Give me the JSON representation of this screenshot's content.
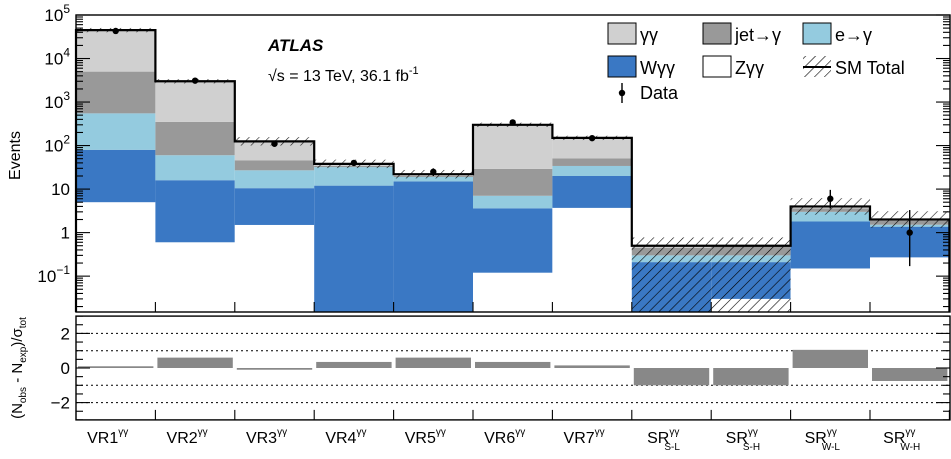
{
  "chart_data": [
    {
      "type": "bar",
      "stacked": true,
      "ylabel": "Events",
      "yscale": "log",
      "ylim": [
        0.015,
        100000
      ],
      "y_tick_labels": [
        {
          "value": 100000,
          "base": "10",
          "exp": "5"
        },
        {
          "value": 10000,
          "base": "10",
          "exp": "4"
        },
        {
          "value": 1000,
          "base": "10",
          "exp": "3"
        },
        {
          "value": 100,
          "base": "10",
          "exp": "2"
        },
        {
          "value": 10,
          "base": "10",
          "exp": ""
        },
        {
          "value": 1,
          "base": "1",
          "exp": ""
        },
        {
          "value": 0.1,
          "base": "10",
          "exp": "−1"
        }
      ],
      "categories": [
        {
          "main": "VR1",
          "sup": "γγ",
          "sub": ""
        },
        {
          "main": "VR2",
          "sup": "γγ",
          "sub": ""
        },
        {
          "main": "VR3",
          "sup": "γγ",
          "sub": ""
        },
        {
          "main": "VR4",
          "sup": "γγ",
          "sub": ""
        },
        {
          "main": "VR5",
          "sup": "γγ",
          "sub": ""
        },
        {
          "main": "VR6",
          "sup": "γγ",
          "sub": ""
        },
        {
          "main": "VR7",
          "sup": "γγ",
          "sub": ""
        },
        {
          "main": "SR",
          "sup": "γγ",
          "sub": "S-L"
        },
        {
          "main": "SR",
          "sup": "γγ",
          "sub": "S-H"
        },
        {
          "main": "SR",
          "sup": "γγ",
          "sub": "W-L"
        },
        {
          "main": "SR",
          "sup": "γγ",
          "sub": "W-H"
        }
      ],
      "series": [
        {
          "name": "Zγγ",
          "color": "#ffffff",
          "values": [
            5,
            0.6,
            1.5,
            0.01,
            0.01,
            0.12,
            3.7,
            0.01,
            0.03,
            0.15,
            0.27
          ]
        },
        {
          "name": "Wγγ",
          "color": "#3a78c4",
          "values": [
            75,
            15.4,
            9,
            12,
            15,
            3.5,
            16.3,
            0.2,
            0.18,
            1.65,
            1.1
          ]
        },
        {
          "name": "e→γ",
          "color": "#94cbdf",
          "values": [
            470,
            44,
            16.5,
            20,
            4,
            3.4,
            14,
            0.09,
            0.09,
            1.2,
            0.15
          ]
        },
        {
          "name": "jet→γ",
          "color": "#999999",
          "values": [
            4450,
            290,
            19,
            2,
            1,
            22,
            17,
            0.15,
            0.2,
            0.6,
            0.35
          ]
        },
        {
          "name": "γγ",
          "color": "#d0d0d0",
          "values": [
            40000,
            2650,
            79,
            2,
            1,
            270,
            99,
            0.06,
            0.01,
            0.4,
            0.13
          ]
        }
      ],
      "sm_total": [
        45000,
        3000,
        125,
        38,
        22,
        300,
        150,
        0.5,
        0.5,
        4.0,
        2.0
      ],
      "data": {
        "name": "Data",
        "values": [
          43000,
          3100,
          110,
          40,
          25,
          340,
          148,
          null,
          null,
          6,
          1
        ],
        "errors_low": [
          200,
          55,
          10,
          6,
          5,
          18,
          12,
          null,
          null,
          2.4,
          0.83
        ],
        "errors_high": [
          200,
          55,
          10,
          6,
          5,
          18,
          12,
          null,
          null,
          3.6,
          2.3
        ]
      },
      "legend": {
        "placement": "top-right",
        "entries": [
          {
            "name": "γγ",
            "color": "#d0d0d0",
            "kind": "box"
          },
          {
            "name": "jet→γ",
            "color": "#999999",
            "kind": "box"
          },
          {
            "name": "e→γ",
            "color": "#94cbdf",
            "kind": "box"
          },
          {
            "name": "Wγγ",
            "color": "#3a78c4",
            "kind": "box"
          },
          {
            "name": "Zγγ",
            "color": "#ffffff",
            "kind": "box"
          },
          {
            "name": "SM Total",
            "color": "#000000",
            "kind": "hatch"
          },
          {
            "name": "Data",
            "color": "#000000",
            "kind": "marker"
          }
        ]
      },
      "annotations": {
        "experiment": "ATLAS",
        "energy_label_prefix": "√s = 13 TeV, 36.1 fb",
        "energy_label_exp": "-1"
      }
    },
    {
      "type": "bar",
      "ylabel_parts": [
        "(N",
        "obs",
        " - N",
        "exp",
        ")/σ",
        "tot"
      ],
      "ylim": [
        -3,
        3
      ],
      "yticks": [
        2,
        0,
        -2
      ],
      "ytick_labels": [
        "2",
        "0",
        "−2"
      ],
      "grid_lines": [
        2,
        1,
        -1,
        -2
      ],
      "bar_color": "#888888",
      "values": [
        0.1,
        0.6,
        -0.1,
        0.35,
        0.6,
        0.35,
        0.15,
        -1.0,
        -1.0,
        1.05,
        -0.75
      ]
    }
  ]
}
